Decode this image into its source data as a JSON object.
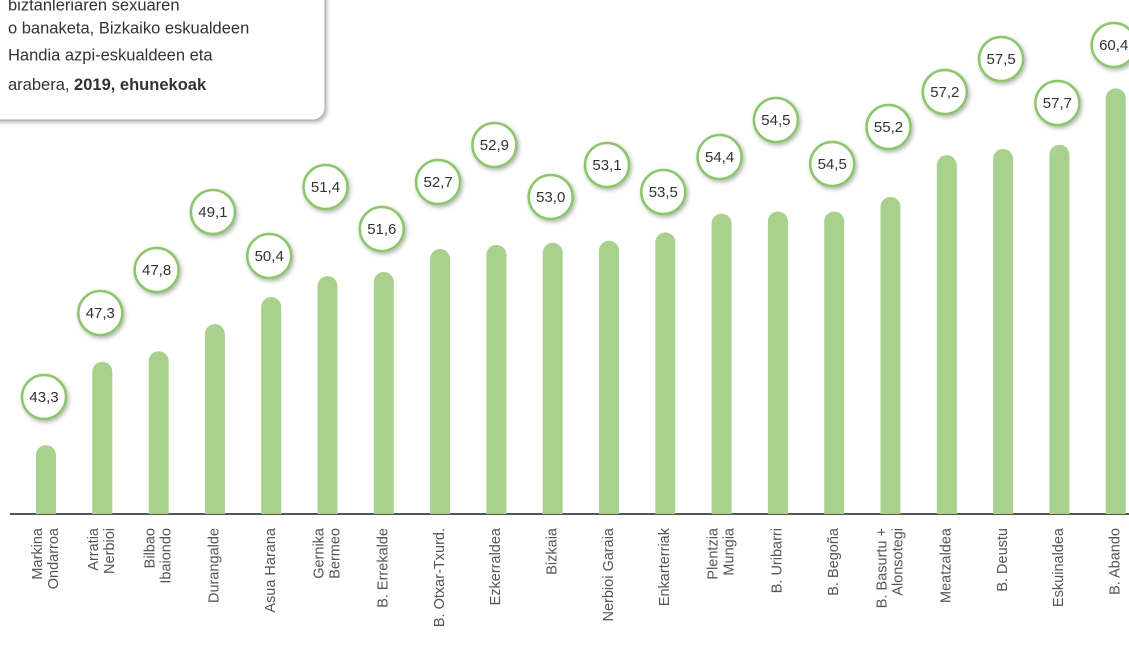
{
  "chart_data": {
    "type": "bar",
    "title_lines": [
      "biztanleriaren sexuaren",
      "o banaketa, Bizkaiko eskualdeen",
      "Handia azpi-eskualdeen eta"
    ],
    "title_last": [
      "arabera, ",
      "2019, ehunekoak"
    ],
    "categories": [
      [
        "Markina",
        "Ondarroa"
      ],
      [
        "Arratia",
        "Nerbioi"
      ],
      [
        "Bilbao",
        "Ibaiondo"
      ],
      [
        "Durangalde"
      ],
      [
        "Asua Harana"
      ],
      [
        "Gernika",
        "Bermeo"
      ],
      [
        "B. Errekalde"
      ],
      [
        "B. Otxar-Txurd."
      ],
      [
        "Ezkerraldea"
      ],
      [
        "Bizkaia"
      ],
      [
        "Nerbioi Garaia"
      ],
      [
        "Enkarterriak"
      ],
      [
        "Plentzia",
        "Mungia"
      ],
      [
        "B. Uribarri"
      ],
      [
        "B. Begoña"
      ],
      [
        "B. Basurtu +",
        "Alonsotegi"
      ],
      [
        "Meatzaldea"
      ],
      [
        "B. Deustu"
      ],
      [
        "Eskuinaldea"
      ],
      [
        "B. Abando"
      ]
    ],
    "values": [
      43.3,
      47.3,
      47.8,
      49.1,
      50.4,
      51.4,
      51.6,
      52.7,
      52.9,
      53.0,
      53.1,
      53.5,
      54.4,
      54.5,
      54.5,
      55.2,
      57.2,
      57.5,
      57.7,
      60.4
    ],
    "value_labels": [
      "43,3",
      "47,3",
      "47,8",
      "49,1",
      "50,4",
      "51,4",
      "51,6",
      "52,7",
      "52,9",
      "53,0",
      "53,1",
      "53,5",
      "54,4",
      "54,5",
      "54,5",
      "55,2",
      "57,2",
      "57,5",
      "57,7",
      "60,4"
    ],
    "color": "#a9d18e",
    "label_border": "#8cc66a",
    "ylim": [
      40,
      62
    ]
  }
}
